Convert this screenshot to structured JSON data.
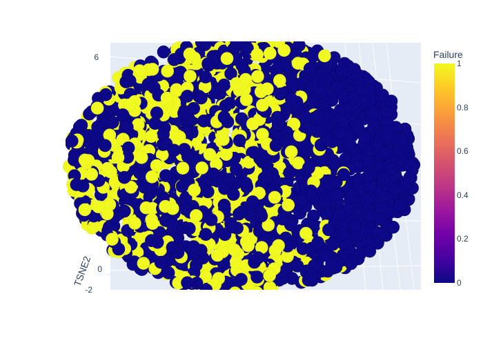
{
  "chart_data": {
    "type": "scatter",
    "subtype": "3d-scatter",
    "title": "",
    "axes": {
      "y": {
        "label": "TSNE2",
        "tick_labels": [
          "6",
          "0",
          "-2"
        ]
      }
    },
    "color": {
      "variable": "Failure",
      "range": [
        0,
        1
      ],
      "colorscale": "plasma",
      "low_color": "#0d0887",
      "high_color": "#f0f921",
      "tick_labels": [
        "1",
        "0.8",
        "0.6",
        "0.4",
        "0.2",
        "0"
      ]
    },
    "values": {
      "failure": [
        0,
        1
      ]
    },
    "grid": true,
    "scene_background": "#e5ecf6",
    "legend": "colorbar-right"
  }
}
